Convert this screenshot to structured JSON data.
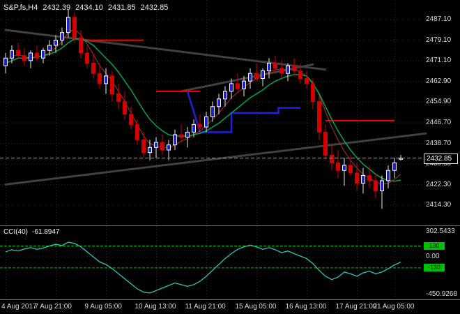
{
  "header": {
    "symbol": "S&P,fs,H4",
    "open": "2432.39",
    "high": "2434.10",
    "low": "2431.85",
    "close": "2432.85"
  },
  "colors": {
    "background": "#000000",
    "grid": "#2e2e2e",
    "text": "#dcdcdc",
    "bull": "#2222cc",
    "bull_border": "#ffffff",
    "bull_wick": "#e8e8e8",
    "bear": "#d40000",
    "green_ma": "#00a550",
    "red_ma": "#aa3333",
    "red_level": "#ff0000",
    "blue_step": "#2020d8",
    "trendline": "#414141",
    "price_line": "#9a9a9a",
    "cci_line": "#2fc7b2",
    "cci_level": "#00c000",
    "divider": "#6e6e6e"
  },
  "chart_data": {
    "type": "candlestick",
    "title": "S&P,fs,H4",
    "symbol": "S&P,fs",
    "timeframe": "H4",
    "main_pane": {
      "price_labels": [
        2487.1,
        2479.1,
        2471.1,
        2462.9,
        2454.9,
        2446.7,
        2438.7,
        2430.5,
        2422.3,
        2414.3
      ],
      "price_range_hint": [
        2406.9,
        2493.1
      ],
      "current_price": 2432.85,
      "current_price_text": "2432.85",
      "candles": [
        [
          2469,
          2474,
          2466,
          2472
        ],
        [
          2472,
          2477,
          2470,
          2475
        ],
        [
          2475,
          2478,
          2472,
          2473
        ],
        [
          2473,
          2476,
          2469,
          2471
        ],
        [
          2471,
          2475,
          2468,
          2474
        ],
        [
          2474,
          2477,
          2471,
          2472
        ],
        [
          2472,
          2476,
          2470,
          2475
        ],
        [
          2475,
          2479,
          2473,
          2477
        ],
        [
          2477,
          2481,
          2474,
          2479
        ],
        [
          2479,
          2484,
          2477,
          2482
        ],
        [
          2482,
          2491,
          2480,
          2488
        ],
        [
          2488,
          2490,
          2478,
          2480
        ],
        [
          2480,
          2483,
          2472,
          2474
        ],
        [
          2474,
          2477,
          2468,
          2470
        ],
        [
          2470,
          2474,
          2464,
          2466
        ],
        [
          2466,
          2470,
          2460,
          2462
        ],
        [
          2462,
          2468,
          2458,
          2465
        ],
        [
          2465,
          2467,
          2455,
          2458
        ],
        [
          2458,
          2462,
          2452,
          2455
        ],
        [
          2455,
          2459,
          2448,
          2450
        ],
        [
          2450,
          2453,
          2444,
          2446
        ],
        [
          2446,
          2448,
          2438,
          2440
        ],
        [
          2440,
          2443,
          2433,
          2435
        ],
        [
          2435,
          2440,
          2432,
          2437
        ],
        [
          2437,
          2441,
          2433,
          2439
        ],
        [
          2439,
          2442,
          2434,
          2436
        ],
        [
          2436,
          2440,
          2432,
          2438
        ],
        [
          2438,
          2444,
          2436,
          2442
        ],
        [
          2442,
          2446,
          2439,
          2441
        ],
        [
          2441,
          2445,
          2437,
          2443
        ],
        [
          2443,
          2448,
          2441,
          2446
        ],
        [
          2446,
          2450,
          2443,
          2445
        ],
        [
          2445,
          2451,
          2443,
          2449
        ],
        [
          2449,
          2455,
          2447,
          2453
        ],
        [
          2453,
          2458,
          2450,
          2456
        ],
        [
          2456,
          2461,
          2453,
          2459
        ],
        [
          2459,
          2464,
          2456,
          2462
        ],
        [
          2462,
          2466,
          2459,
          2460
        ],
        [
          2460,
          2465,
          2457,
          2463
        ],
        [
          2463,
          2468,
          2460,
          2466
        ],
        [
          2466,
          2470,
          2463,
          2464
        ],
        [
          2464,
          2468,
          2461,
          2467
        ],
        [
          2467,
          2472,
          2464,
          2470
        ],
        [
          2470,
          2473,
          2466,
          2468
        ],
        [
          2468,
          2471,
          2464,
          2466
        ],
        [
          2466,
          2470,
          2463,
          2469
        ],
        [
          2469,
          2472,
          2465,
          2467
        ],
        [
          2467,
          2470,
          2462,
          2464
        ],
        [
          2464,
          2467,
          2460,
          2462
        ],
        [
          2462,
          2464,
          2452,
          2455
        ],
        [
          2455,
          2457,
          2440,
          2443
        ],
        [
          2443,
          2446,
          2432,
          2434
        ],
        [
          2434,
          2438,
          2428,
          2431
        ],
        [
          2431,
          2436,
          2425,
          2428
        ],
        [
          2428,
          2433,
          2422,
          2430
        ],
        [
          2430,
          2434,
          2426,
          2427
        ],
        [
          2427,
          2431,
          2420,
          2423
        ],
        [
          2423,
          2429,
          2419,
          2426
        ],
        [
          2426,
          2430,
          2421,
          2424
        ],
        [
          2424,
          2427,
          2417,
          2420
        ],
        [
          2420,
          2426,
          2413,
          2424
        ],
        [
          2424,
          2430,
          2421,
          2428
        ],
        [
          2428,
          2433,
          2425,
          2431
        ],
        [
          2432.39,
          2434.1,
          2431.85,
          2432.85
        ]
      ],
      "overlays": {
        "green_ma": [
          2470,
          2471,
          2472,
          2472,
          2472,
          2472.5,
          2473,
          2473.5,
          2474.5,
          2476,
          2478,
          2479.5,
          2479.5,
          2478.5,
          2477,
          2474.5,
          2472,
          2469.5,
          2466.5,
          2463,
          2459.5,
          2455.5,
          2451.5,
          2448,
          2445.5,
          2443.5,
          2442,
          2441.5,
          2441.5,
          2441.5,
          2442,
          2442.5,
          2443.5,
          2445,
          2446.5,
          2448.5,
          2450.5,
          2452.5,
          2454.5,
          2456.5,
          2458,
          2459.5,
          2461.5,
          2463,
          2464,
          2465,
          2465.5,
          2465.5,
          2465,
          2462,
          2458,
          2453,
          2448,
          2443.5,
          2439.5,
          2436,
          2433,
          2430.5,
          2428.5,
          2426.5,
          2425,
          2424,
          2423.8,
          2424.2
        ],
        "red_ma": [
          2471,
          2472.5,
          2473.5,
          2472.5,
          2472,
          2472.5,
          2473,
          2474,
          2476,
          2478.5,
          2482,
          2483.5,
          2481,
          2477.5,
          2473.5,
          2469,
          2466,
          2463,
          2459,
          2455,
          2450.5,
          2446,
          2441.5,
          2438.5,
          2437.5,
          2437,
          2437,
          2438,
          2439.5,
          2440.5,
          2442,
          2443.5,
          2445.5,
          2448,
          2450.5,
          2453.5,
          2456.5,
          2458.5,
          2460.5,
          2462.5,
          2464,
          2465,
          2466.5,
          2467.5,
          2467.5,
          2467.5,
          2467.5,
          2466.5,
          2465,
          2462.5,
          2457.5,
          2451,
          2445,
          2440,
          2435.5,
          2432,
          2429,
          2426.5,
          2425,
          2423.5,
          2422.5,
          2423,
          2424.5,
          2426.5
        ],
        "red_levels": [
          {
            "price": 2479.0,
            "from_bar": 12,
            "to_bar": 22
          },
          {
            "price": 2459.0,
            "from_bar": 24,
            "to_bar": 31
          },
          {
            "price": 2447.5,
            "from_bar": 51,
            "to_bar": 62
          }
        ],
        "blue_step": [
          [
            29,
            2459
          ],
          [
            31,
            2443
          ],
          [
            36,
            2443
          ],
          [
            36,
            2450.5
          ],
          [
            43.5,
            2450.5
          ],
          [
            43.5,
            2452.5
          ],
          [
            47,
            2452.5
          ]
        ],
        "trendlines": [
          [
            [
              0,
              2483
            ],
            [
              51,
              2467.5
            ]
          ],
          [
            [
              28,
              2459
            ],
            [
              49,
              2469.5
            ]
          ],
          [
            [
              0,
              2422.5
            ],
            [
              67,
              2442.5
            ]
          ]
        ]
      }
    },
    "indicator_pane": {
      "name": "CCI(40)",
      "value": "-61.8947",
      "axis_labels": [
        {
          "v": 302.5433,
          "text": "302.5433"
        },
        {
          "v": 0,
          "text": "0.00"
        },
        {
          "v": -450.9268,
          "text": "-450.9268"
        }
      ],
      "levels": [
        {
          "v": 130,
          "text": "130"
        },
        {
          "v": -130,
          "text": "-130"
        }
      ],
      "range_hint": [
        -480,
        350
      ],
      "values": [
        60,
        85,
        70,
        95,
        110,
        90,
        105,
        130,
        150,
        135,
        175,
        160,
        120,
        60,
        0,
        -60,
        -90,
        -140,
        -200,
        -260,
        -320,
        -380,
        -420,
        -430,
        -400,
        -370,
        -340,
        -310,
        -330,
        -350,
        -330,
        -290,
        -230,
        -160,
        -90,
        -20,
        40,
        90,
        120,
        140,
        120,
        90,
        110,
        85,
        50,
        70,
        40,
        10,
        -20,
        -80,
        -160,
        -230,
        -270,
        -240,
        -180,
        -200,
        -230,
        -190,
        -170,
        -200,
        -180,
        -140,
        -95,
        -61.8947
      ]
    },
    "time_axis": [
      {
        "bar": 0,
        "label": "4 Aug 2017"
      },
      {
        "bar": 8,
        "label": "7 Aug 21:00"
      },
      {
        "bar": 16,
        "label": "9 Aug 05:00"
      },
      {
        "bar": 24,
        "label": "10 Aug 13:00"
      },
      {
        "bar": 32,
        "label": "11 Aug 21:00"
      },
      {
        "bar": 40,
        "label": "15 Aug 05:00"
      },
      {
        "bar": 48,
        "label": "16 Aug 13:00"
      },
      {
        "bar": 56,
        "label": "17 Aug 21:00"
      },
      {
        "bar": 62,
        "label": "21 Aug 05:00"
      }
    ]
  }
}
